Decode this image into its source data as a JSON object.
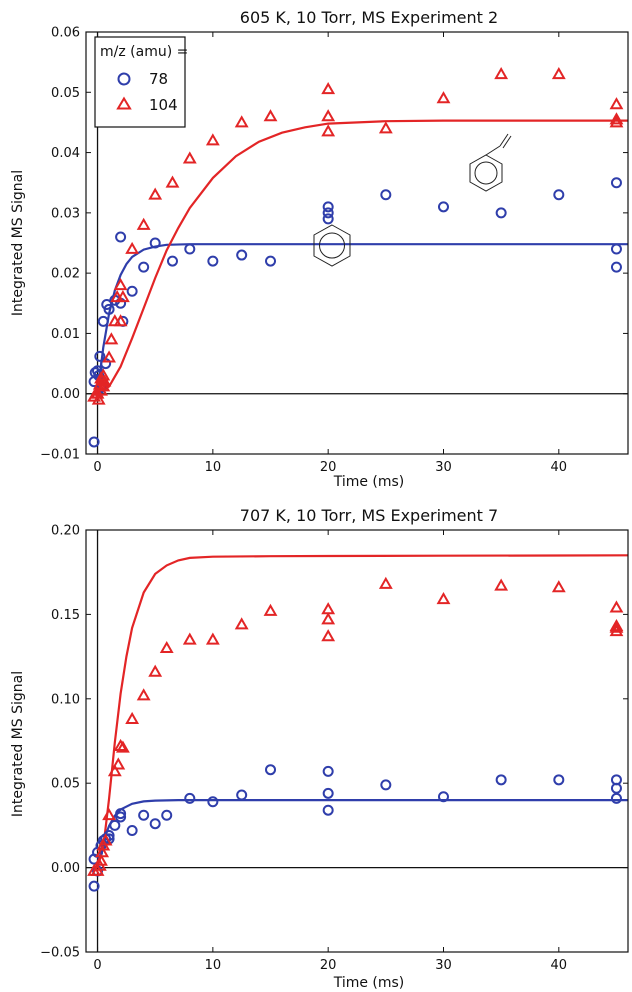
{
  "chart_data": [
    {
      "type": "scatter",
      "title": "605 K, 10 Torr, MS Experiment 2",
      "xlabel": "Time (ms)",
      "ylabel": "Integrated MS Signal",
      "xlim": [
        -1,
        46
      ],
      "ylim": [
        -0.01,
        0.06
      ],
      "xticks": [
        0,
        10,
        20,
        30,
        40
      ],
      "yticks": [
        -0.01,
        0.0,
        0.01,
        0.02,
        0.03,
        0.04,
        0.05,
        0.06
      ],
      "ytick_labels": [
        "−0.01",
        "0.00",
        "0.01",
        "0.02",
        "0.03",
        "0.04",
        "0.05",
        "0.06"
      ],
      "grid": false,
      "zero_lines": true,
      "legend": {
        "title": "m/z (amu) =",
        "position": "top-left"
      },
      "series": [
        {
          "name": "78",
          "marker": "circle",
          "color": "#2f3eab",
          "points": [
            [
              -0.3,
              -0.008
            ],
            [
              -0.3,
              0.002
            ],
            [
              -0.2,
              0.0035
            ],
            [
              0.0,
              0.0038
            ],
            [
              0.1,
              0.003
            ],
            [
              0.2,
              0.0062
            ],
            [
              0.3,
              0.001
            ],
            [
              0.5,
              0.012
            ],
            [
              0.7,
              0.005
            ],
            [
              0.8,
              0.0148
            ],
            [
              1.0,
              0.014
            ],
            [
              1.5,
              0.0155
            ],
            [
              2.0,
              0.026
            ],
            [
              2.0,
              0.015
            ],
            [
              2.2,
              0.012
            ],
            [
              3.0,
              0.017
            ],
            [
              4.0,
              0.021
            ],
            [
              5.0,
              0.025
            ],
            [
              6.5,
              0.022
            ],
            [
              8.0,
              0.024
            ],
            [
              10.0,
              0.022
            ],
            [
              12.5,
              0.023
            ],
            [
              15.0,
              0.022
            ],
            [
              20.0,
              0.031
            ],
            [
              20.0,
              0.03
            ],
            [
              20.0,
              0.029
            ],
            [
              25.0,
              0.033
            ],
            [
              30.0,
              0.031
            ],
            [
              35.0,
              0.03
            ],
            [
              40.0,
              0.033
            ],
            [
              45.0,
              0.035
            ],
            [
              45.0,
              0.024
            ],
            [
              45.0,
              0.021
            ]
          ],
          "fit": [
            [
              0,
              0.0
            ],
            [
              0.5,
              0.0077
            ],
            [
              1,
              0.0133
            ],
            [
              1.5,
              0.0171
            ],
            [
              2,
              0.0197
            ],
            [
              2.5,
              0.0215
            ],
            [
              3,
              0.0227
            ],
            [
              4,
              0.0239
            ],
            [
              5,
              0.0244
            ],
            [
              6,
              0.0247
            ],
            [
              8,
              0.0248
            ],
            [
              10,
              0.0248
            ],
            [
              20,
              0.0248
            ],
            [
              30,
              0.0248
            ],
            [
              40,
              0.0248
            ],
            [
              46,
              0.0248
            ]
          ]
        },
        {
          "name": "104",
          "marker": "triangle",
          "color": "#e32526",
          "points": [
            [
              -0.3,
              -0.0005
            ],
            [
              -0.1,
              0.0
            ],
            [
              0.0,
              0.0
            ],
            [
              0.1,
              -0.001
            ],
            [
              0.2,
              0.0015
            ],
            [
              0.3,
              0.0025
            ],
            [
              0.3,
              0.0005
            ],
            [
              0.4,
              0.0022
            ],
            [
              0.5,
              0.003
            ],
            [
              0.5,
              0.0012
            ],
            [
              0.6,
              0.002
            ],
            [
              1.0,
              0.006
            ],
            [
              1.2,
              0.009
            ],
            [
              1.5,
              0.012
            ],
            [
              1.7,
              0.016
            ],
            [
              2.0,
              0.018
            ],
            [
              2.0,
              0.012
            ],
            [
              2.2,
              0.016
            ],
            [
              3.0,
              0.024
            ],
            [
              4.0,
              0.028
            ],
            [
              5.0,
              0.033
            ],
            [
              6.5,
              0.035
            ],
            [
              8.0,
              0.039
            ],
            [
              10.0,
              0.042
            ],
            [
              12.5,
              0.045
            ],
            [
              15.0,
              0.046
            ],
            [
              20.0,
              0.0505
            ],
            [
              20.0,
              0.046
            ],
            [
              20.0,
              0.0435
            ],
            [
              25.0,
              0.044
            ],
            [
              30.0,
              0.049
            ],
            [
              35.0,
              0.053
            ],
            [
              40.0,
              0.053
            ],
            [
              45.0,
              0.048
            ],
            [
              45.0,
              0.0455
            ],
            [
              45.0,
              0.045
            ]
          ],
          "fit": [
            [
              0,
              0.0
            ],
            [
              1,
              0.0012
            ],
            [
              2,
              0.0045
            ],
            [
              3,
              0.0092
            ],
            [
              4,
              0.0142
            ],
            [
              5,
              0.0192
            ],
            [
              6,
              0.0238
            ],
            [
              7,
              0.0275
            ],
            [
              8,
              0.0308
            ],
            [
              10,
              0.0358
            ],
            [
              12,
              0.0394
            ],
            [
              14,
              0.0418
            ],
            [
              16,
              0.0433
            ],
            [
              18,
              0.0442
            ],
            [
              20,
              0.0448
            ],
            [
              25,
              0.0452
            ],
            [
              30,
              0.0453
            ],
            [
              40,
              0.0453
            ],
            [
              46,
              0.0453
            ]
          ]
        }
      ]
    },
    {
      "type": "scatter",
      "title": "707 K, 10 Torr, MS Experiment 7",
      "xlabel": "Time (ms)",
      "ylabel": "Integrated MS Signal",
      "xlim": [
        -1,
        46
      ],
      "ylim": [
        -0.05,
        0.2
      ],
      "xticks": [
        0,
        10,
        20,
        30,
        40
      ],
      "yticks": [
        -0.05,
        0.0,
        0.05,
        0.1,
        0.15,
        0.2
      ],
      "ytick_labels": [
        "−0.05",
        "0.00",
        "0.05",
        "0.10",
        "0.15",
        "0.20"
      ],
      "grid": false,
      "zero_lines": true,
      "series": [
        {
          "name": "78",
          "marker": "circle",
          "color": "#2f3eab",
          "points": [
            [
              -0.3,
              -0.011
            ],
            [
              -0.3,
              0.005
            ],
            [
              0.0,
              0.009
            ],
            [
              0.0,
              -0.002
            ],
            [
              0.3,
              0.013
            ],
            [
              0.5,
              0.016
            ],
            [
              0.7,
              0.017
            ],
            [
              1.0,
              0.019
            ],
            [
              1.0,
              0.017
            ],
            [
              1.5,
              0.025
            ],
            [
              2.0,
              0.032
            ],
            [
              2.0,
              0.03
            ],
            [
              3.0,
              0.022
            ],
            [
              4.0,
              0.031
            ],
            [
              5.0,
              0.026
            ],
            [
              6.0,
              0.031
            ],
            [
              8.0,
              0.041
            ],
            [
              10.0,
              0.039
            ],
            [
              12.5,
              0.043
            ],
            [
              15.0,
              0.058
            ],
            [
              20.0,
              0.057
            ],
            [
              20.0,
              0.044
            ],
            [
              20.0,
              0.034
            ],
            [
              25.0,
              0.049
            ],
            [
              30.0,
              0.042
            ],
            [
              35.0,
              0.052
            ],
            [
              40.0,
              0.052
            ],
            [
              45.0,
              0.052
            ],
            [
              45.0,
              0.047
            ],
            [
              45.0,
              0.041
            ]
          ],
          "fit": [
            [
              0,
              0.0
            ],
            [
              0.5,
              0.0156
            ],
            [
              1,
              0.0247
            ],
            [
              1.5,
              0.0307
            ],
            [
              2,
              0.0344
            ],
            [
              3,
              0.0378
            ],
            [
              4,
              0.0392
            ],
            [
              5,
              0.0397
            ],
            [
              7,
              0.04
            ],
            [
              10,
              0.04
            ],
            [
              20,
              0.04
            ],
            [
              30,
              0.04
            ],
            [
              40,
              0.04
            ],
            [
              46,
              0.04
            ]
          ]
        },
        {
          "name": "104",
          "marker": "triangle",
          "color": "#e32526",
          "points": [
            [
              -0.3,
              -0.002
            ],
            [
              0.0,
              -0.002
            ],
            [
              0.2,
              0.001
            ],
            [
              0.3,
              0.004
            ],
            [
              0.4,
              0.009
            ],
            [
              0.5,
              0.013
            ],
            [
              0.7,
              0.016
            ],
            [
              1.0,
              0.031
            ],
            [
              1.5,
              0.057
            ],
            [
              1.8,
              0.061
            ],
            [
              2.0,
              0.072
            ],
            [
              2.2,
              0.071
            ],
            [
              3.0,
              0.088
            ],
            [
              4.0,
              0.102
            ],
            [
              5.0,
              0.116
            ],
            [
              6.0,
              0.13
            ],
            [
              8.0,
              0.135
            ],
            [
              10.0,
              0.135
            ],
            [
              12.5,
              0.144
            ],
            [
              15.0,
              0.152
            ],
            [
              20.0,
              0.153
            ],
            [
              20.0,
              0.147
            ],
            [
              20.0,
              0.137
            ],
            [
              25.0,
              0.168
            ],
            [
              30.0,
              0.159
            ],
            [
              35.0,
              0.167
            ],
            [
              40.0,
              0.166
            ],
            [
              45.0,
              0.154
            ],
            [
              45.0,
              0.143
            ],
            [
              45.0,
              0.142
            ],
            [
              45.0,
              0.14
            ]
          ],
          "fit": [
            [
              0,
              0.0
            ],
            [
              0.5,
              0.012
            ],
            [
              1,
              0.041
            ],
            [
              1.5,
              0.074
            ],
            [
              2,
              0.103
            ],
            [
              2.5,
              0.125
            ],
            [
              3,
              0.142
            ],
            [
              4,
              0.163
            ],
            [
              5,
              0.174
            ],
            [
              6,
              0.179
            ],
            [
              7,
              0.182
            ],
            [
              8,
              0.1835
            ],
            [
              10,
              0.1842
            ],
            [
              15,
              0.1845
            ],
            [
              20,
              0.1846
            ],
            [
              30,
              0.1848
            ],
            [
              40,
              0.1849
            ],
            [
              46,
              0.185
            ]
          ]
        }
      ]
    }
  ]
}
